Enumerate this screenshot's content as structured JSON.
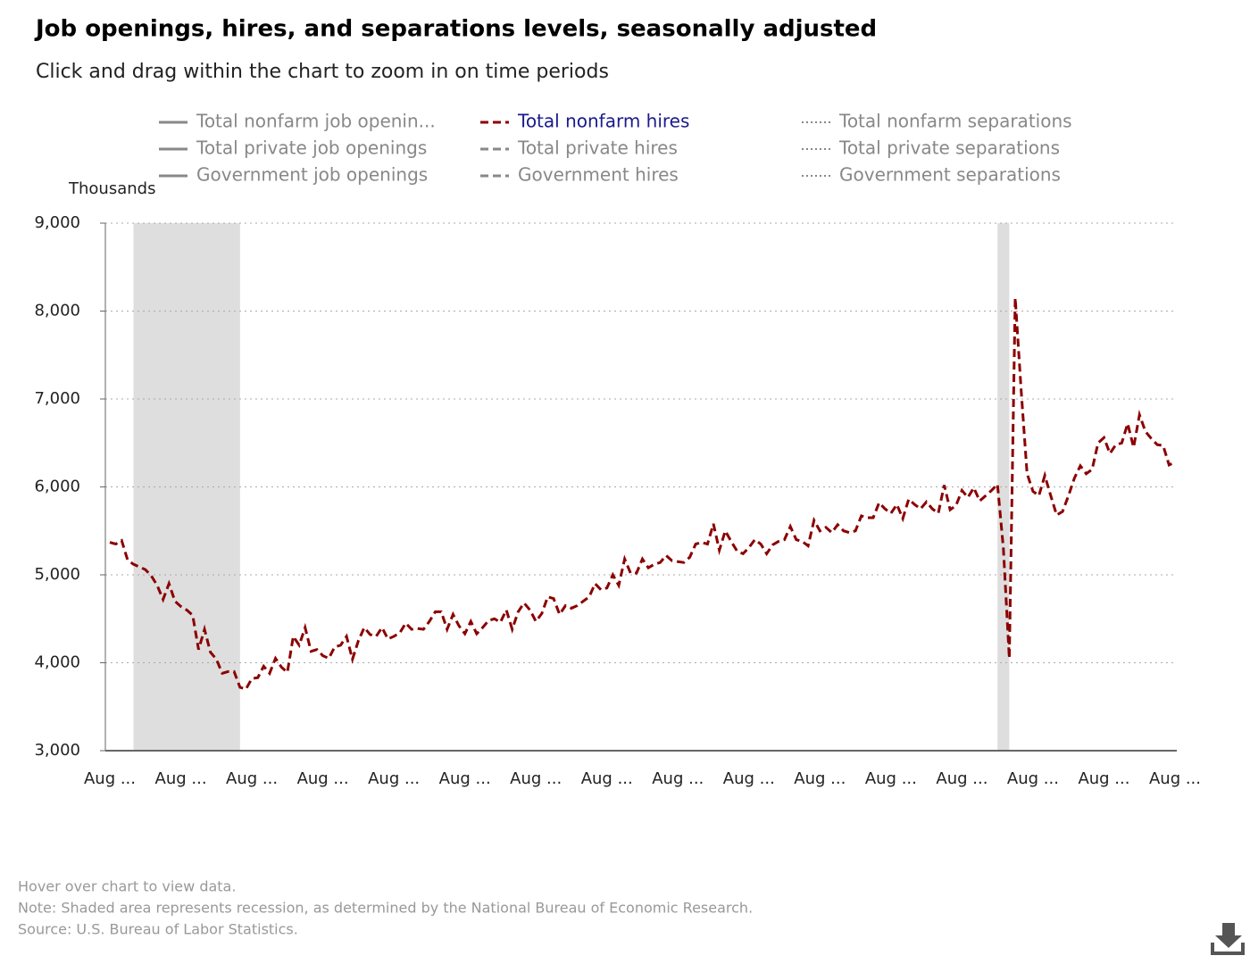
{
  "chart_data": {
    "type": "line",
    "title": "Job openings, hires, and separations levels, seasonally adjusted",
    "subtitle": "Click and drag within the chart to zoom in on time periods",
    "y_label": "Thousands",
    "ylim": [
      3000,
      9000
    ],
    "yticks": [
      {
        "value": 3000,
        "label": "3,000"
      },
      {
        "value": 4000,
        "label": "4,000"
      },
      {
        "value": 5000,
        "label": "5,000"
      },
      {
        "value": 6000,
        "label": "6,000"
      },
      {
        "value": 7000,
        "label": "7,000"
      },
      {
        "value": 8000,
        "label": "8,000"
      },
      {
        "value": 9000,
        "label": "9,000"
      }
    ],
    "grid": true,
    "recession_spans": [
      [
        4,
        22
      ],
      [
        150,
        152
      ]
    ],
    "categories": [
      "Aug ...",
      null,
      null,
      null,
      null,
      null,
      null,
      null,
      null,
      null,
      null,
      null,
      "Aug ...",
      null,
      null,
      null,
      null,
      null,
      null,
      null,
      null,
      null,
      null,
      null,
      "Aug ...",
      null,
      null,
      null,
      null,
      null,
      null,
      null,
      null,
      null,
      null,
      null,
      "Aug ...",
      null,
      null,
      null,
      null,
      null,
      null,
      null,
      null,
      null,
      null,
      null,
      "Aug ...",
      null,
      null,
      null,
      null,
      null,
      null,
      null,
      null,
      null,
      null,
      null,
      "Aug ...",
      null,
      null,
      null,
      null,
      null,
      null,
      null,
      null,
      null,
      null,
      null,
      "Aug ...",
      null,
      null,
      null,
      null,
      null,
      null,
      null,
      null,
      null,
      null,
      null,
      "Aug ...",
      null,
      null,
      null,
      null,
      null,
      null,
      null,
      null,
      null,
      null,
      null,
      "Aug ...",
      null,
      null,
      null,
      null,
      null,
      null,
      null,
      null,
      null,
      null,
      null,
      "Aug ...",
      null,
      null,
      null,
      null,
      null,
      null,
      null,
      null,
      null,
      null,
      null,
      "Aug ...",
      null,
      null,
      null,
      null,
      null,
      null,
      null,
      null,
      null,
      null,
      null,
      "Aug ...",
      null,
      null,
      null,
      null,
      null,
      null,
      null,
      null,
      null,
      null,
      null,
      "Aug ...",
      null,
      null,
      null,
      null,
      null,
      null,
      null,
      null,
      null,
      null,
      null,
      "Aug ...",
      null,
      null,
      null,
      null,
      null,
      null,
      null,
      null,
      null,
      null,
      null,
      "Aug ...",
      null,
      null,
      null,
      null,
      null,
      null,
      null,
      null,
      null,
      null,
      null,
      "Aug ..."
    ],
    "series": [
      {
        "name": "Total nonfarm job openin...",
        "color": "#888888",
        "dash": "solid",
        "visible": false
      },
      {
        "name": "Total private job openings",
        "color": "#888888",
        "dash": "solid",
        "visible": false
      },
      {
        "name": "Government job openings",
        "color": "#888888",
        "dash": "solid",
        "visible": false
      },
      {
        "name": "Total nonfarm hires",
        "color": "#8b0000",
        "dash": "dashed",
        "visible": true,
        "values": [
          5370,
          5350,
          5390,
          5170,
          5120,
          5090,
          5060,
          4990,
          4880,
          4720,
          4900,
          4700,
          4640,
          4600,
          4540,
          4150,
          4380,
          4120,
          4040,
          3880,
          3900,
          3900,
          3720,
          3700,
          3820,
          3830,
          3960,
          3880,
          4050,
          3950,
          3890,
          4300,
          4200,
          4400,
          4130,
          4150,
          4080,
          4050,
          4180,
          4200,
          4300,
          4040,
          4250,
          4400,
          4320,
          4300,
          4400,
          4270,
          4300,
          4340,
          4450,
          4380,
          4390,
          4380,
          4470,
          4580,
          4580,
          4380,
          4550,
          4420,
          4330,
          4470,
          4330,
          4400,
          4480,
          4500,
          4460,
          4600,
          4380,
          4580,
          4680,
          4600,
          4470,
          4560,
          4750,
          4730,
          4550,
          4650,
          4620,
          4650,
          4700,
          4750,
          4900,
          4830,
          4850,
          5000,
          4880,
          5180,
          5020,
          5020,
          5180,
          5080,
          5120,
          5140,
          5220,
          5160,
          5150,
          5140,
          5200,
          5350,
          5370,
          5350,
          5580,
          5280,
          5500,
          5380,
          5270,
          5240,
          5310,
          5400,
          5350,
          5240,
          5340,
          5380,
          5400,
          5550,
          5400,
          5380,
          5330,
          5620,
          5500,
          5540,
          5480,
          5570,
          5500,
          5480,
          5500,
          5670,
          5650,
          5650,
          5820,
          5750,
          5700,
          5800,
          5640,
          5860,
          5800,
          5750,
          5830,
          5750,
          5700,
          6020,
          5740,
          5790,
          5960,
          5880,
          5990,
          5840,
          5900,
          5960,
          6030,
          5300,
          4050,
          8150,
          7100,
          6150,
          5950,
          5900,
          6130,
          5900,
          5680,
          5720,
          5900,
          6100,
          6240,
          6150,
          6200,
          6500,
          6560,
          6380,
          6480,
          6500,
          6720,
          6450,
          6820,
          6630,
          6550,
          6480,
          6470,
          6250,
          6280
        ]
      },
      {
        "name": "Total private hires",
        "color": "#888888",
        "dash": "dashed",
        "visible": false
      },
      {
        "name": "Government hires",
        "color": "#888888",
        "dash": "dashed",
        "visible": false
      },
      {
        "name": "Total nonfarm separations",
        "color": "#888888",
        "dash": "dotted",
        "visible": false
      },
      {
        "name": "Total private separations",
        "color": "#888888",
        "dash": "dotted",
        "visible": false
      },
      {
        "name": "Government separations",
        "color": "#888888",
        "dash": "dotted",
        "visible": false
      }
    ],
    "footer": [
      "Hover over chart to view data.",
      "Note: Shaded area represents recession, as determined by the National Bureau of Economic Research.",
      "Source: U.S. Bureau of Labor Statistics."
    ]
  }
}
